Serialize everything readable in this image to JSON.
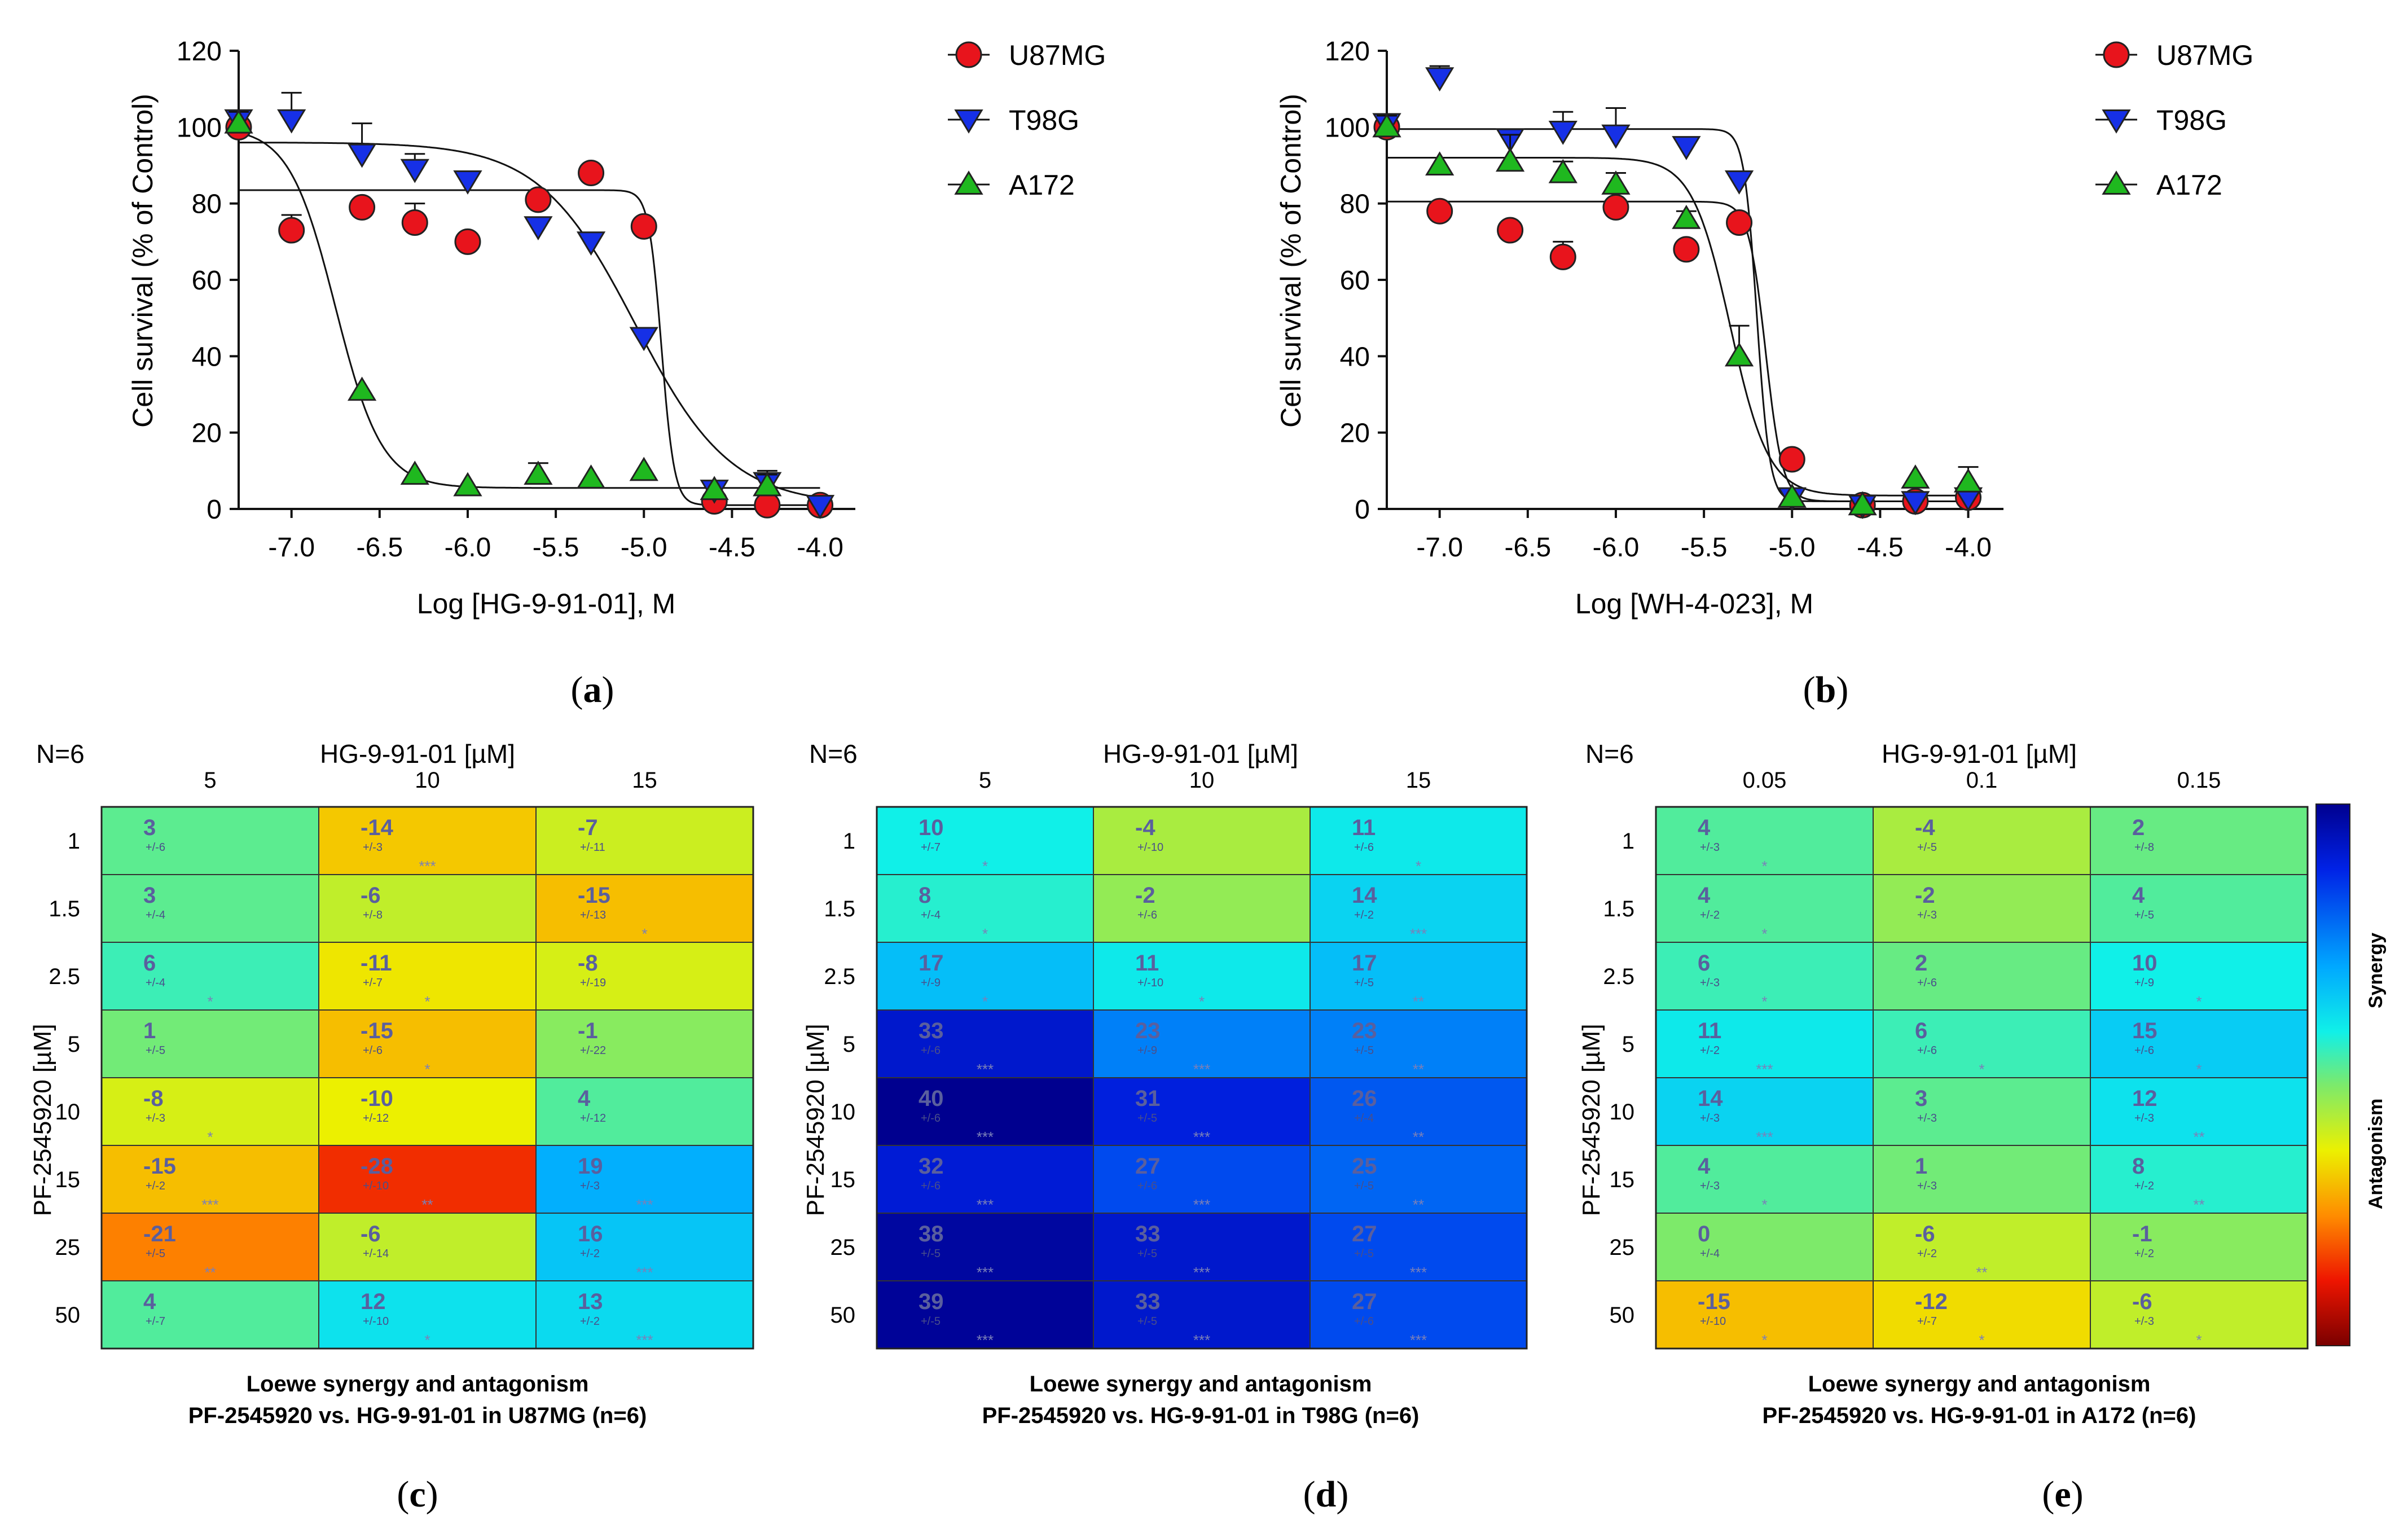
{
  "figure": {
    "panel_labels": [
      {
        "id": "a",
        "open": "(",
        "letter": "a",
        "close": ")"
      },
      {
        "id": "b",
        "open": "(",
        "letter": "b",
        "close": ")"
      },
      {
        "id": "c",
        "open": "(",
        "letter": "c",
        "close": ")"
      },
      {
        "id": "d",
        "open": "(",
        "letter": "d",
        "close": ")"
      },
      {
        "id": "e",
        "open": "(",
        "letter": "e",
        "close": ")"
      }
    ]
  },
  "colors": {
    "red": "#e8141c",
    "blue": "#1630e6",
    "green": "#1fb81f"
  },
  "chart_data": [
    {
      "id": "a",
      "type": "scatter",
      "xlabel": "Log [HG-9-91-01], M",
      "ylabel": "Cell survival (% of Control)",
      "xlim": [
        -7.3,
        -3.8
      ],
      "ylim": [
        0,
        120
      ],
      "xticks": [
        -7.0,
        -6.5,
        -6.0,
        -5.5,
        -5.0,
        -4.5,
        -4.0
      ],
      "xtick_labels": [
        "-7.0",
        "-6.5",
        "-6.0",
        "-5.5",
        "-5.0",
        "-4.5",
        "-4.0"
      ],
      "yticks": [
        0,
        20,
        40,
        60,
        80,
        100,
        120
      ],
      "ytick_labels": [
        "0",
        "20",
        "40",
        "60",
        "80",
        "100",
        "120"
      ],
      "legend": [
        "U87MG",
        "T98G",
        "A172"
      ],
      "series": [
        {
          "name": "U87MG",
          "marker": "circle",
          "color": "#e8141c",
          "x": [
            -7.3,
            -7.0,
            -6.6,
            -6.3,
            -6.0,
            -5.6,
            -5.3,
            -5.0,
            -4.6,
            -4.3,
            -4.0
          ],
          "y": [
            100,
            73,
            79,
            75,
            70,
            81,
            88,
            74,
            2,
            1,
            1
          ],
          "err": [
            3,
            4,
            0,
            5,
            0,
            0,
            0,
            0,
            0,
            0,
            0
          ],
          "fit": {
            "bottom": 1,
            "top": 83.5,
            "logIC50": -4.9,
            "hill": -12
          }
        },
        {
          "name": "T98G",
          "marker": "tri-down",
          "color": "#1630e6",
          "x": [
            -7.3,
            -7.0,
            -6.6,
            -6.3,
            -6.0,
            -5.6,
            -5.3,
            -5.0,
            -4.6,
            -4.3,
            -4.0
          ],
          "y": [
            102,
            102,
            93,
            89,
            86,
            74,
            70,
            45,
            5,
            7,
            1
          ],
          "err": [
            2,
            7,
            8,
            4,
            2,
            0,
            0,
            0,
            0,
            3,
            0
          ],
          "fit": {
            "bottom": 1,
            "top": 96,
            "logIC50": -5.05,
            "hill": -1.6
          }
        },
        {
          "name": "A172",
          "marker": "tri-up",
          "color": "#1fb81f",
          "x": [
            -7.3,
            -6.6,
            -6.3,
            -6.0,
            -5.6,
            -5.3,
            -5.0,
            -4.6,
            -4.3
          ],
          "y": [
            101,
            31,
            9,
            6,
            9,
            8,
            10,
            5,
            6
          ],
          "err": [
            3,
            0,
            0,
            0,
            3,
            0,
            0,
            0,
            3
          ],
          "fit": {
            "bottom": 5.5,
            "top": 100,
            "logIC50": -6.75,
            "hill": -3.3
          }
        }
      ]
    },
    {
      "id": "b",
      "type": "scatter",
      "xlabel": "Log [WH-4-023], M",
      "ylabel": "Cell survival (% of Control)",
      "xlim": [
        -7.3,
        -3.8
      ],
      "ylim": [
        0,
        120
      ],
      "xticks": [
        -7.0,
        -6.5,
        -6.0,
        -5.5,
        -5.0,
        -4.5,
        -4.0
      ],
      "xtick_labels": [
        "-7.0",
        "-6.5",
        "-6.0",
        "-5.5",
        "-5.0",
        "-4.5",
        "-4.0"
      ],
      "yticks": [
        0,
        20,
        40,
        60,
        80,
        100,
        120
      ],
      "ytick_labels": [
        "0",
        "20",
        "40",
        "60",
        "80",
        "100",
        "120"
      ],
      "legend": [
        "U87MG",
        "T98G",
        "A172"
      ],
      "series": [
        {
          "name": "U87MG",
          "marker": "circle",
          "color": "#e8141c",
          "x": [
            -7.3,
            -7.0,
            -6.6,
            -6.3,
            -6.0,
            -5.6,
            -5.3,
            -5.0,
            -4.6,
            -4.3,
            -4.0
          ],
          "y": [
            100,
            78,
            73,
            66,
            79,
            68,
            75,
            13,
            1,
            2,
            3
          ],
          "err": [
            3,
            0,
            0,
            4,
            0,
            0,
            0,
            0,
            0,
            0,
            0
          ],
          "fit": {
            "bottom": 2,
            "top": 80.5,
            "logIC50": -5.15,
            "hill": -9
          }
        },
        {
          "name": "T98G",
          "marker": "tri-down",
          "color": "#1630e6",
          "x": [
            -7.3,
            -7.0,
            -6.6,
            -6.3,
            -6.0,
            -5.6,
            -5.3,
            -5.0,
            -4.6,
            -4.3,
            -4.0
          ],
          "y": [
            101,
            113,
            97,
            99,
            98,
            95,
            86,
            3,
            1,
            2,
            3
          ],
          "err": [
            2,
            3,
            2,
            5,
            7,
            0,
            0,
            0,
            0,
            0,
            0
          ],
          "fit": {
            "bottom": 2,
            "top": 99.5,
            "logIC50": -5.2,
            "hill": -12
          }
        },
        {
          "name": "A172",
          "marker": "tri-up",
          "color": "#1fb81f",
          "x": [
            -7.3,
            -7.0,
            -6.6,
            -6.3,
            -6.0,
            -5.6,
            -5.3,
            -5.0,
            -4.6,
            -4.3,
            -4.0
          ],
          "y": [
            100,
            90,
            91,
            88,
            85,
            76,
            40,
            3,
            1,
            8,
            7
          ],
          "err": [
            3,
            2,
            7,
            3,
            3,
            2,
            8,
            0,
            0,
            0,
            4
          ],
          "fit": {
            "bottom": 3.5,
            "top": 92,
            "logIC50": -5.35,
            "hill": -4
          }
        }
      ]
    },
    {
      "id": "c",
      "type": "heatmap",
      "n_label": "N=6",
      "col_title": "HG-9-91-01 [µM]",
      "row_title": "PF-2545920 [µM]",
      "columns": [
        "5",
        "10",
        "15"
      ],
      "rows": [
        "1",
        "1.5",
        "2.5",
        "5",
        "10",
        "15",
        "25",
        "50"
      ],
      "values": [
        [
          3,
          -14,
          -7
        ],
        [
          3,
          -6,
          -15
        ],
        [
          6,
          -11,
          -8
        ],
        [
          1,
          -15,
          -1
        ],
        [
          -8,
          -10,
          4
        ],
        [
          -15,
          -28,
          19
        ],
        [
          -21,
          -6,
          16
        ],
        [
          4,
          12,
          13
        ]
      ],
      "errors": [
        [
          "+/-6",
          "+/-3",
          "+/-11"
        ],
        [
          "+/-4",
          "+/-8",
          "+/-13"
        ],
        [
          "+/-4",
          "+/-7",
          "+/-19"
        ],
        [
          "+/-5",
          "+/-6",
          "+/-22"
        ],
        [
          "+/-3",
          "+/-12",
          "+/-12"
        ],
        [
          "+/-2",
          "+/-10",
          "+/-3"
        ],
        [
          "+/-5",
          "+/-14",
          "+/-2"
        ],
        [
          "+/-7",
          "+/-10",
          "+/-2"
        ]
      ],
      "stars": [
        [
          "",
          "***",
          ""
        ],
        [
          "",
          "",
          "*"
        ],
        [
          "*",
          "*",
          ""
        ],
        [
          "",
          "*",
          ""
        ],
        [
          "*",
          "",
          ""
        ],
        [
          "***",
          "**",
          "***"
        ],
        [
          "**",
          "",
          "***"
        ],
        [
          "",
          "*",
          "***"
        ]
      ],
      "caption1": "Loewe synergy and antagonism",
      "caption2": "PF-2545920 vs. HG-9-91-01 in U87MG (n=6)"
    },
    {
      "id": "d",
      "type": "heatmap",
      "n_label": "N=6",
      "col_title": "HG-9-91-01 [µM]",
      "row_title": "PF-2545920 [µM]",
      "columns": [
        "5",
        "10",
        "15"
      ],
      "rows": [
        "1",
        "1.5",
        "2.5",
        "5",
        "10",
        "15",
        "25",
        "50"
      ],
      "values": [
        [
          10,
          -4,
          11
        ],
        [
          8,
          -2,
          14
        ],
        [
          17,
          11,
          17
        ],
        [
          33,
          23,
          23
        ],
        [
          40,
          31,
          26
        ],
        [
          32,
          27,
          25
        ],
        [
          38,
          33,
          27
        ],
        [
          39,
          33,
          27
        ]
      ],
      "errors": [
        [
          "+/-7",
          "+/-10",
          "+/-6"
        ],
        [
          "+/-4",
          "+/-6",
          "+/-2"
        ],
        [
          "+/-9",
          "+/-10",
          "+/-5"
        ],
        [
          "+/-6",
          "+/-9",
          "+/-5"
        ],
        [
          "+/-6",
          "+/-5",
          "+/-4"
        ],
        [
          "+/-6",
          "+/-6",
          "+/-5"
        ],
        [
          "+/-5",
          "+/-5",
          "+/-5"
        ],
        [
          "+/-5",
          "+/-5",
          "+/-6"
        ]
      ],
      "stars": [
        [
          "*",
          "",
          "*"
        ],
        [
          "*",
          "",
          "***"
        ],
        [
          "*",
          "*",
          "**"
        ],
        [
          "***",
          "***",
          "**"
        ],
        [
          "***",
          "***",
          "**"
        ],
        [
          "***",
          "***",
          "**"
        ],
        [
          "***",
          "***",
          "***"
        ],
        [
          "***",
          "***",
          "***"
        ]
      ],
      "caption1": "Loewe synergy and antagonism",
      "caption2": "PF-2545920 vs. HG-9-91-01 in T98G (n=6)"
    },
    {
      "id": "e",
      "type": "heatmap",
      "n_label": "N=6",
      "col_title": "HG-9-91-01 [µM]",
      "row_title": "PF-2545920 [µM]",
      "columns": [
        "0.05",
        "0.1",
        "0.15"
      ],
      "rows": [
        "1",
        "1.5",
        "2.5",
        "5",
        "10",
        "15",
        "25",
        "50"
      ],
      "values": [
        [
          4,
          -4,
          2
        ],
        [
          4,
          -2,
          4
        ],
        [
          6,
          2,
          10
        ],
        [
          11,
          6,
          15
        ],
        [
          14,
          3,
          12
        ],
        [
          4,
          1,
          8
        ],
        [
          0,
          -6,
          -1
        ],
        [
          -15,
          -12,
          -6
        ]
      ],
      "errors": [
        [
          "+/-3",
          "+/-5",
          "+/-8"
        ],
        [
          "+/-2",
          "+/-3",
          "+/-5"
        ],
        [
          "+/-3",
          "+/-6",
          "+/-9"
        ],
        [
          "+/-2",
          "+/-6",
          "+/-6"
        ],
        [
          "+/-3",
          "+/-3",
          "+/-3"
        ],
        [
          "+/-3",
          "+/-3",
          "+/-2"
        ],
        [
          "+/-4",
          "+/-2",
          "+/-2"
        ],
        [
          "+/-10",
          "+/-7",
          "+/-3"
        ]
      ],
      "stars": [
        [
          "*",
          "",
          ""
        ],
        [
          "*",
          "",
          ""
        ],
        [
          "*",
          "",
          "*"
        ],
        [
          "***",
          "*",
          "*"
        ],
        [
          "***",
          "",
          "**"
        ],
        [
          "*",
          "",
          "**"
        ],
        [
          "",
          "**",
          ""
        ],
        [
          "*",
          "*",
          "*"
        ]
      ],
      "caption1": "Loewe synergy and antagonism",
      "caption2": "PF-2545920 vs. HG-9-91-01 in A172 (n=6)",
      "colorbar": {
        "synergy_label": "Synergy",
        "antagonism_label": "Antagonism",
        "range": [
          -40,
          40
        ]
      }
    }
  ]
}
